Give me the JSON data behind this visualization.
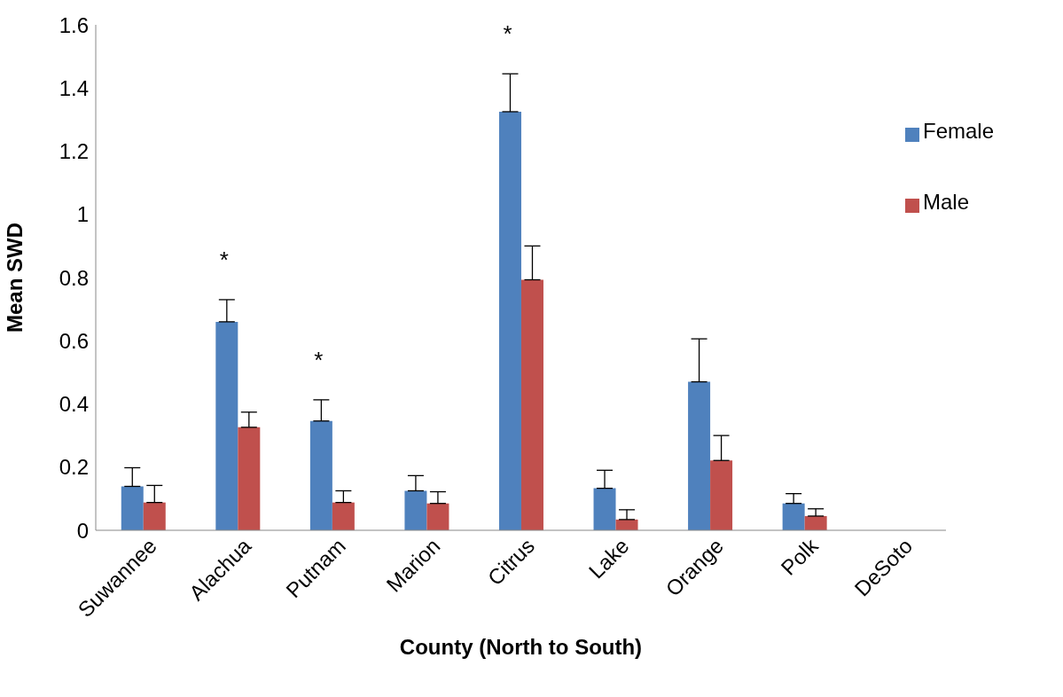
{
  "chart_data": {
    "type": "bar",
    "xlabel": "County (North to South)",
    "ylabel": "Mean SWD",
    "categories": [
      "Suwannee",
      "Alachua",
      "Putnam",
      "Marion",
      "Citrus",
      "Lake",
      "Orange",
      "Polk",
      "DeSoto"
    ],
    "series": [
      {
        "name": "Female",
        "color": "#4f81bd",
        "values": [
          0.139,
          0.66,
          0.346,
          0.125,
          1.325,
          0.133,
          0.47,
          0.085,
          0
        ],
        "errors": [
          [
            0.139,
            0.198
          ],
          [
            0.66,
            0.73
          ],
          [
            0.346,
            0.413
          ],
          [
            0.125,
            0.173
          ],
          [
            1.325,
            1.445
          ],
          [
            0.133,
            0.19
          ],
          [
            0.47,
            0.606
          ],
          [
            0.085,
            0.116
          ],
          null
        ]
      },
      {
        "name": "Male",
        "color": "#c0504d",
        "values": [
          0.088,
          0.326,
          0.088,
          0.085,
          0.793,
          0.034,
          0.221,
          0.045,
          0
        ],
        "errors": [
          [
            0.088,
            0.142
          ],
          [
            0.326,
            0.374
          ],
          [
            0.088,
            0.125
          ],
          [
            0.085,
            0.122
          ],
          [
            0.793,
            0.9
          ],
          [
            0.034,
            0.065
          ],
          [
            0.221,
            0.3
          ],
          [
            0.045,
            0.068
          ],
          null
        ]
      }
    ],
    "ylim": [
      0,
      1.6
    ],
    "yticks": [
      0,
      0.2,
      0.4,
      0.6,
      0.8,
      1,
      1.2,
      1.4,
      1.6
    ],
    "grid": false,
    "legend": "top right",
    "annotations": [
      {
        "text": "*",
        "x": "Alachua",
        "y": 0.66
      },
      {
        "text": "*",
        "x": "Putnam",
        "y": 0.346
      },
      {
        "text": "*",
        "x": "Citrus",
        "y": 1.325
      }
    ]
  }
}
